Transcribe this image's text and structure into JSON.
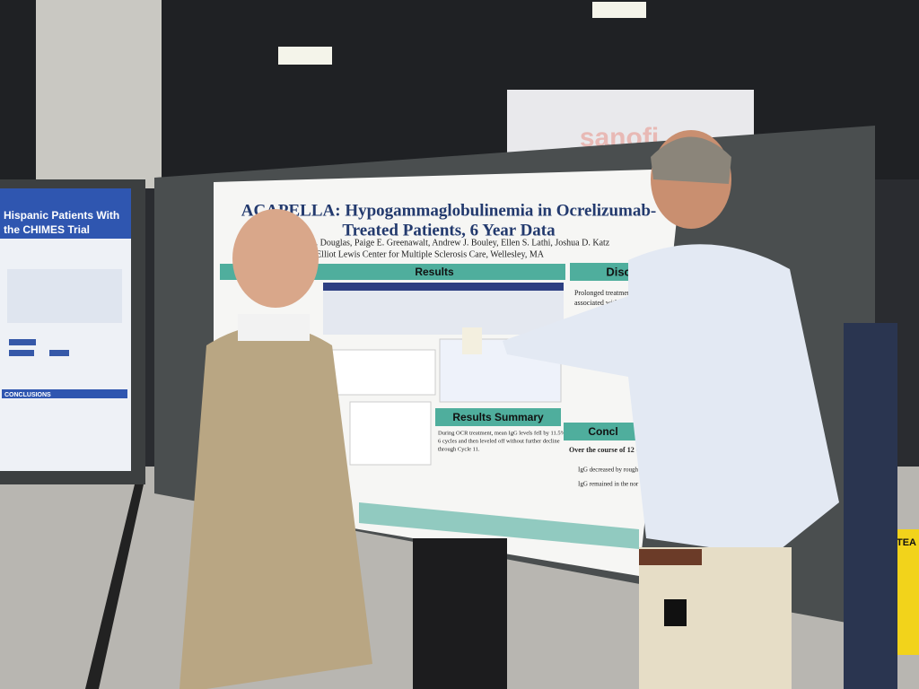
{
  "scene": {
    "sign": "sanofi",
    "main_poster": {
      "title_line1": "ACAPELLA: Hypogammaglobulinemia in Ocrelizumab-",
      "title_line2": "Treated Patients, 6 Year Data",
      "authors": "lizabeth A. Douglas, Paige E. Greenawalt, Andrew J. Bouley, Ellen S. Lathi, Joshua D. Katz",
      "affiliation": "The Elliot Lewis Center for Multiple Sclerosis Care, Wellesley, MA",
      "sections": [
        "Results",
        "Discussion",
        "Results Summary",
        "Concl"
      ],
      "summary_text": [
        "During OCR treatment, mean IgG levels fell by 11.5% by",
        "6 cycles and then leveled off without further decline",
        "through Cycle 11."
      ],
      "discussion_text": [
        "Prolonged treatment with anti B-cell th",
        "associated with a risk of hypogam"
      ],
      "conclusion_text": [
        "Over the course of 12 C",
        "IgG decreased by rough",
        "IgG remained in the nor"
      ]
    },
    "left_poster": {
      "title_line1": "Hispanic Patients With",
      "title_line2": "the CHIMES Trial",
      "section": "CONCLUSIONS"
    },
    "right_sign": "TEA"
  }
}
